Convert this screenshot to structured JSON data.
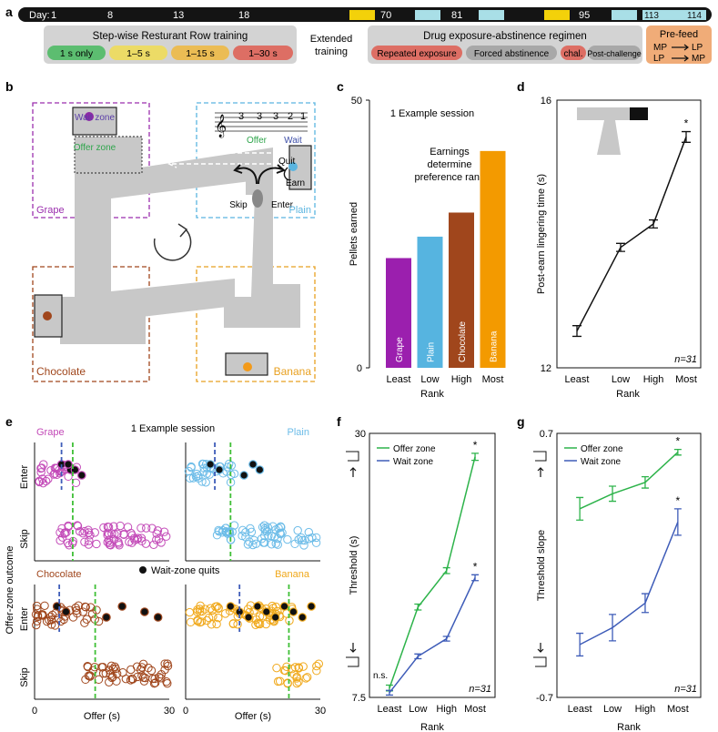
{
  "timeline": {
    "prefix": "Day:",
    "days": [
      {
        "label": "1"
      },
      {
        "label": "8"
      },
      {
        "label": "13"
      },
      {
        "label": "18"
      },
      {
        "label": "70"
      },
      {
        "label": "81"
      },
      {
        "label": "95"
      },
      {
        "label": "113"
      },
      {
        "label": "114"
      }
    ],
    "training_title": "Step-wise Resturant Row training",
    "stages": [
      "1 s only",
      "1–5 s",
      "1–15 s",
      "1–30 s"
    ],
    "extended_label": "Extended training",
    "drug_title": "Drug exposure-abstinence regimen",
    "drug_stages": [
      "Repeated exposure",
      "Forced abstinence",
      "chal.",
      "Post-challenge"
    ],
    "prefeed_title": "Pre-feed",
    "prefeed_lines": [
      "MP",
      "LP",
      "LP",
      "MP"
    ]
  },
  "panel_letters": [
    "a",
    "b",
    "c",
    "d",
    "e",
    "f",
    "g"
  ],
  "maze": {
    "zones": {
      "grape": "Grape",
      "plain": "Plain",
      "chocolate": "Chocolate",
      "banana": "Banana"
    },
    "labels": {
      "wait_zone": "Wait zone",
      "offer_zone": "Offer zone",
      "offer": "Offer",
      "wait": "Wait",
      "quit": "Quit",
      "earn": "Earn",
      "skip": "Skip",
      "enter": "Enter"
    },
    "tone_digits": [
      "3",
      "3",
      "3",
      "2",
      "1"
    ],
    "colors": {
      "grape": "#9b2fae",
      "plain": "#5bb5e0",
      "chocolate": "#a0461c",
      "banana": "#f39a1a"
    }
  },
  "panel_c": {
    "title": "1 Example session",
    "annotation": [
      "Earnings",
      "determine",
      "preference rank"
    ],
    "chart_data": {
      "type": "bar",
      "categories": [
        "Least",
        "Low",
        "High",
        "Most"
      ],
      "bar_labels": [
        "Grape",
        "Plain",
        "Chocolate",
        "Banana"
      ],
      "values": [
        20.5,
        24.5,
        29,
        40.5
      ],
      "colors": [
        "#9b1fae",
        "#56b4e0",
        "#a0461c",
        "#f39a00"
      ],
      "ylabel": "Pellets earned",
      "xlabel": "Rank",
      "ylim": [
        0,
        50
      ],
      "yticks": [
        "0",
        "50"
      ]
    }
  },
  "panel_d": {
    "chart_data": {
      "type": "line",
      "categories": [
        "Least",
        "Low",
        "High",
        "Most"
      ],
      "values": [
        12.55,
        13.8,
        14.15,
        15.45
      ],
      "errors": [
        0.08,
        0.06,
        0.06,
        0.08
      ],
      "ylabel": "Post-earn lingering time (s)",
      "xlabel": "Rank",
      "ylim": [
        12,
        16
      ],
      "yticks": [
        "12",
        "16"
      ],
      "annotation": "n=31",
      "sig": [
        "",
        "",
        "",
        "*"
      ]
    }
  },
  "panel_e": {
    "title": "1 Example session",
    "legend": "Wait-zone quits",
    "xlabel": "Offer (s)",
    "ylabel": "Offer-zone outcome",
    "row_labels": [
      "Enter",
      "Skip"
    ],
    "xticks": [
      "0",
      "30"
    ],
    "subpanels": [
      {
        "name": "Grape",
        "color": "#c34ab8",
        "offer_threshold": 8.5,
        "wait_threshold": 6,
        "quits": [
          6,
          8,
          10.5,
          7.5,
          9
        ]
      },
      {
        "name": "Plain",
        "color": "#6cbce8",
        "offer_threshold": 10,
        "wait_threshold": 6.5,
        "quits": [
          5.5,
          7.5,
          13,
          15,
          16.5
        ]
      },
      {
        "name": "Chocolate",
        "color": "#a0461c",
        "offer_threshold": 13.5,
        "wait_threshold": 5.5,
        "quits": [
          5,
          7,
          16,
          19.5,
          24.5,
          27.5
        ]
      },
      {
        "name": "Banana",
        "color": "#f0a81a",
        "offer_threshold": 23,
        "wait_threshold": 12,
        "quits": [
          10,
          12,
          14,
          16,
          18,
          20,
          22,
          24,
          26,
          28
        ]
      }
    ]
  },
  "panel_f": {
    "chart_data": {
      "type": "line",
      "categories": [
        "Least",
        "Low",
        "High",
        "Most"
      ],
      "series": [
        {
          "name": "Offer zone",
          "color": "#2db34a",
          "values": [
            8.3,
            15.2,
            18.3,
            28.0
          ],
          "errors": [
            0.25,
            0.25,
            0.25,
            0.3
          ]
        },
        {
          "name": "Wait zone",
          "color": "#3e5cb8",
          "values": [
            7.9,
            11.0,
            12.5,
            17.7
          ],
          "errors": [
            0.2,
            0.2,
            0.2,
            0.25
          ]
        }
      ],
      "ylabel": "Threshold (s)",
      "xlabel": "Rank",
      "ylim": [
        7.5,
        30
      ],
      "yticks": [
        "7.5",
        "30"
      ],
      "annotation": "n=31",
      "ns_label": "n.s.",
      "sig": [
        "",
        "",
        "",
        "*"
      ]
    }
  },
  "panel_g": {
    "chart_data": {
      "type": "line",
      "categories": [
        "Least",
        "Low",
        "High",
        "Most"
      ],
      "series": [
        {
          "name": "Offer zone",
          "color": "#2db34a",
          "values": [
            0.3,
            0.38,
            0.44,
            0.6
          ],
          "errors": [
            0.06,
            0.04,
            0.03,
            0.015
          ]
        },
        {
          "name": "Wait zone",
          "color": "#3e5cb8",
          "values": [
            -0.42,
            -0.33,
            -0.2,
            0.23
          ],
          "errors": [
            0.06,
            0.07,
            0.05,
            0.07
          ]
        }
      ],
      "ylabel": "Threshold slope",
      "xlabel": "Rank",
      "ylim": [
        -0.7,
        0.7
      ],
      "yticks": [
        "-0.7",
        "0.7"
      ],
      "annotation": "n=31",
      "sig": [
        "",
        "",
        "",
        "*"
      ]
    }
  }
}
